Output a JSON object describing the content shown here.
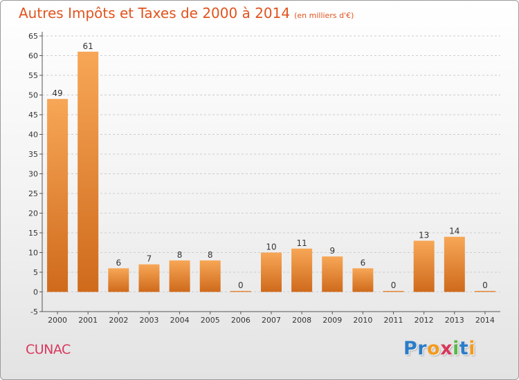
{
  "title": "Autres Impôts et Taxes de 2000 à 2014",
  "subtitle": "(en milliers d'€)",
  "city": "CUNAC",
  "logo": {
    "text": "Proxiti",
    "letters": [
      {
        "ch": "P",
        "color": "#2b7cc7"
      },
      {
        "ch": "r",
        "color": "#2b7cc7"
      },
      {
        "ch": "o",
        "color": "#f39a1e"
      },
      {
        "ch": "x",
        "color": "#d9375d"
      },
      {
        "ch": "i",
        "color": "#58b848"
      },
      {
        "ch": "t",
        "color": "#2b7cc7"
      },
      {
        "ch": "i",
        "color": "#f39a1e"
      }
    ]
  },
  "colors": {
    "title": "#e0531d",
    "city": "#d9375d",
    "bar_light": "#f7a757",
    "bar_dark": "#cf6a1b",
    "grid": "#cccccc"
  },
  "chart_data": {
    "type": "bar",
    "categories": [
      "2000",
      "2001",
      "2002",
      "2003",
      "2004",
      "2005",
      "2006",
      "2007",
      "2008",
      "2009",
      "2010",
      "2011",
      "2012",
      "2013",
      "2014"
    ],
    "values": [
      49,
      61,
      6,
      7,
      8,
      8,
      0,
      10,
      11,
      9,
      6,
      0,
      13,
      14,
      0
    ],
    "data_labels": [
      "49",
      "61",
      "6",
      "7",
      "8",
      "8",
      "0",
      "10",
      "11",
      "9",
      "6",
      "0",
      "13",
      "14",
      "0"
    ],
    "title": "Autres Impôts et Taxes de 2000 à 2014",
    "subtitle": "(en milliers d'€)",
    "ylim": [
      -5,
      65
    ],
    "yticks": [
      "-5",
      "0",
      "5",
      "10",
      "15",
      "20",
      "25",
      "30",
      "35",
      "40",
      "45",
      "50",
      "55",
      "60",
      "65"
    ],
    "grid": true,
    "legend": "none"
  }
}
